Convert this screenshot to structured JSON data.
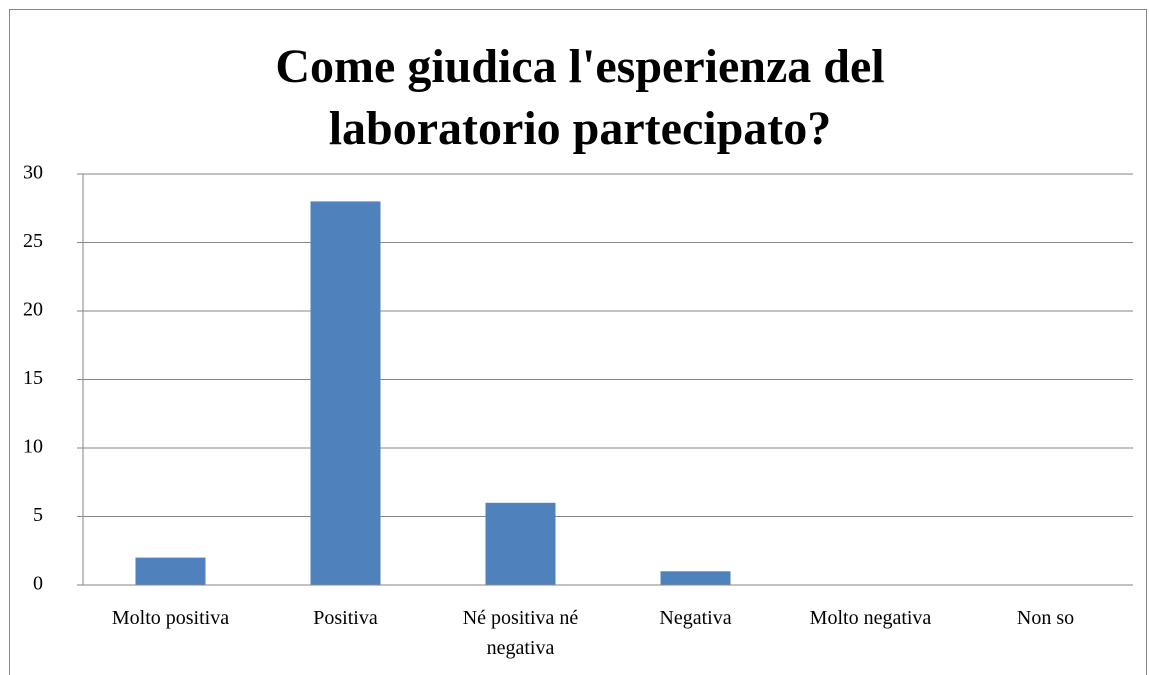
{
  "chart_data": {
    "type": "bar",
    "title": "Come giudica l'esperienza del laboratorio partecipato?",
    "categories": [
      "Molto positiva",
      "Positiva",
      "Né positiva né negativa",
      "Negativa",
      "Molto negativa",
      "Non so"
    ],
    "values": [
      2,
      28,
      6,
      1,
      0,
      0
    ],
    "color": "#4f81bd",
    "ylim": [
      0,
      30
    ],
    "yticks": [
      0,
      5,
      10,
      15,
      20,
      25,
      30
    ],
    "grid": true
  }
}
